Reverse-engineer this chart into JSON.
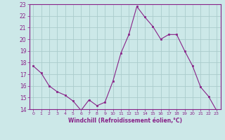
{
  "x": [
    0,
    1,
    2,
    3,
    4,
    5,
    6,
    7,
    8,
    9,
    10,
    11,
    12,
    13,
    14,
    15,
    16,
    17,
    18,
    19,
    20,
    21,
    22,
    23
  ],
  "y": [
    17.7,
    17.1,
    16.0,
    15.5,
    15.2,
    14.7,
    13.9,
    14.8,
    14.3,
    14.6,
    16.4,
    18.8,
    20.4,
    22.8,
    21.9,
    21.1,
    20.0,
    20.4,
    20.4,
    19.0,
    17.7,
    15.9,
    15.1,
    13.9
  ],
  "xlabel": "Windchill (Refroidissement éolien,°C)",
  "ylim": [
    14,
    23
  ],
  "xlim": [
    -0.5,
    23.5
  ],
  "yticks": [
    14,
    15,
    16,
    17,
    18,
    19,
    20,
    21,
    22,
    23
  ],
  "xticks": [
    0,
    1,
    2,
    3,
    4,
    5,
    6,
    7,
    8,
    9,
    10,
    11,
    12,
    13,
    14,
    15,
    16,
    17,
    18,
    19,
    20,
    21,
    22,
    23
  ],
  "line_color": "#882288",
  "marker_color": "#882288",
  "bg_color": "#cce8e8",
  "grid_color": "#aacccc",
  "label_color": "#882288"
}
